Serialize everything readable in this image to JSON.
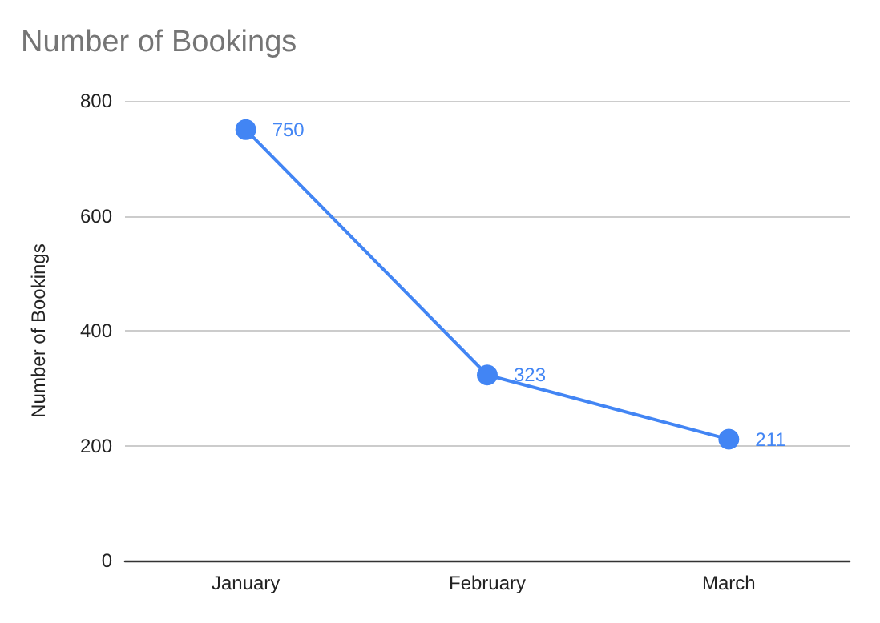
{
  "chart_data": {
    "type": "line",
    "title": "Number of Bookings",
    "ylabel": "Number of Bookings",
    "categories": [
      "January",
      "February",
      "March"
    ],
    "series": [
      {
        "color": "#4285f4",
        "values": [
          750,
          323,
          211
        ]
      }
    ],
    "ylim": [
      0,
      800
    ],
    "yticks": [
      0,
      200,
      400,
      600,
      800
    ],
    "grid": "y",
    "marker": "circle",
    "data_labels": true,
    "legend": false
  }
}
